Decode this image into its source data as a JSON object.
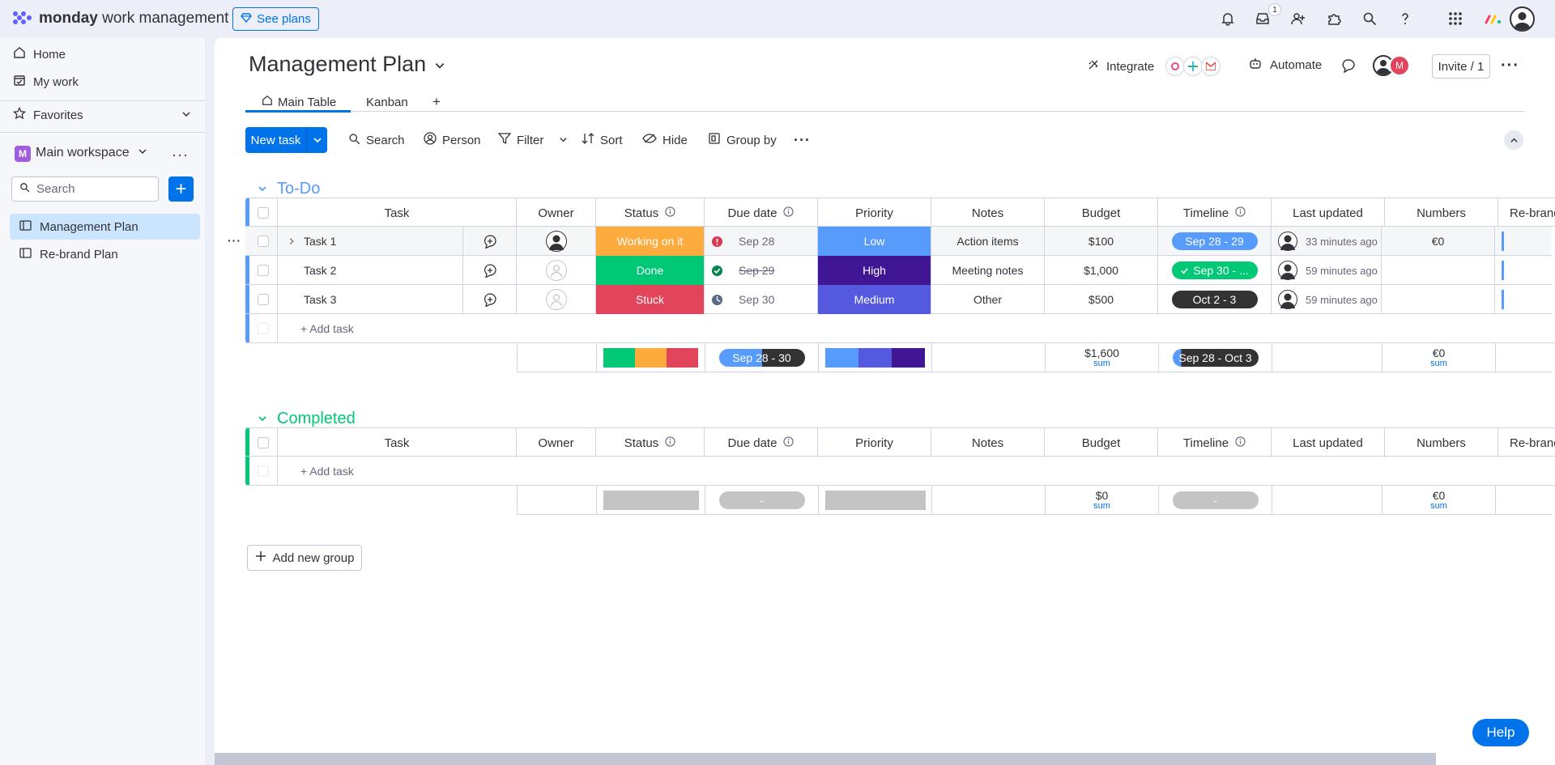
{
  "topbar": {
    "brand_bold": "monday",
    "brand_rest": " work management",
    "see_plans": "See plans",
    "inbox_count": "1",
    "icons": [
      "bell-icon",
      "inbox-icon",
      "invite-person-icon",
      "apps-puzzle-icon",
      "search-icon",
      "help-question-icon",
      "app-grid-icon",
      "monday-logo-icon",
      "user-avatar-icon"
    ]
  },
  "sidebar": {
    "home": "Home",
    "my_work": "My work",
    "favorites": "Favorites",
    "workspace_initial": "M",
    "workspace": "Main workspace",
    "search_placeholder": "Search",
    "boards": [
      {
        "label": "Management Plan",
        "active": true
      },
      {
        "label": "Re-brand Plan",
        "active": false
      }
    ]
  },
  "board": {
    "title": "Management Plan",
    "tabs": [
      {
        "label": "Main Table",
        "active": true
      },
      {
        "label": "Kanban",
        "active": false
      },
      {
        "label": "+",
        "active": false
      }
    ],
    "integrate": "Integrate",
    "automate": "Automate",
    "invite": "Invite / 1",
    "member_initial": "M"
  },
  "toolbar": {
    "new_task": "New task",
    "search": "Search",
    "person": "Person",
    "filter": "Filter",
    "sort": "Sort",
    "hide": "Hide",
    "group_by": "Group by"
  },
  "columns": [
    "Task",
    "Owner",
    "Status",
    "Due date",
    "Priority",
    "Notes",
    "Budget",
    "Timeline",
    "Last updated",
    "Numbers",
    "Re-brand"
  ],
  "groups": [
    {
      "title": "To-Do",
      "color": "#579bfc",
      "tasks": [
        {
          "name": "Task 1",
          "owner": "filled",
          "status": "Working on it",
          "status_color": "#fdab3d",
          "due_icon": "alert-icon",
          "due": "Sep 28",
          "due_strike": false,
          "priority": "Low",
          "priority_color": "#579bfc",
          "notes": "Action items",
          "budget": "$100",
          "timeline": "Sep 28 - 29",
          "timeline_color": "#579bfc",
          "last_updated": "33 minutes ago",
          "numbers": "€0"
        },
        {
          "name": "Task 2",
          "owner": "empty",
          "status": "Done",
          "status_color": "#00c875",
          "due_icon": "check-icon",
          "due": "Sep 29",
          "due_strike": true,
          "priority": "High",
          "priority_color": "#401694",
          "notes": "Meeting notes",
          "budget": "$1,000",
          "timeline": "Sep 30 - ...",
          "timeline_color": "#00c875",
          "last_updated": "59 minutes ago",
          "numbers": ""
        },
        {
          "name": "Task 3",
          "owner": "empty",
          "status": "Stuck",
          "status_color": "#e2445c",
          "due_icon": "clock-icon",
          "due": "Sep 30",
          "due_strike": false,
          "priority": "Medium",
          "priority_color": "#5559df",
          "notes": "Other",
          "budget": "$500",
          "timeline": "Oct 2 - 3",
          "timeline_color": "#333333",
          "last_updated": "59 minutes ago",
          "numbers": ""
        }
      ],
      "add_task": "+ Add task",
      "summary": {
        "due": "Sep 28 - 30",
        "budget": "$1,600",
        "budget_label": "sum",
        "timeline": "Sep 28 - Oct 3",
        "numbers": "€0",
        "numbers_label": "sum"
      }
    },
    {
      "title": "Completed",
      "color": "#00c875",
      "tasks": [],
      "add_task": "+ Add task",
      "summary": {
        "due": "-",
        "budget": "$0",
        "budget_label": "sum",
        "timeline": "-",
        "numbers": "€0",
        "numbers_label": "sum"
      }
    }
  ],
  "add_new_group": "Add new group",
  "help": "Help"
}
